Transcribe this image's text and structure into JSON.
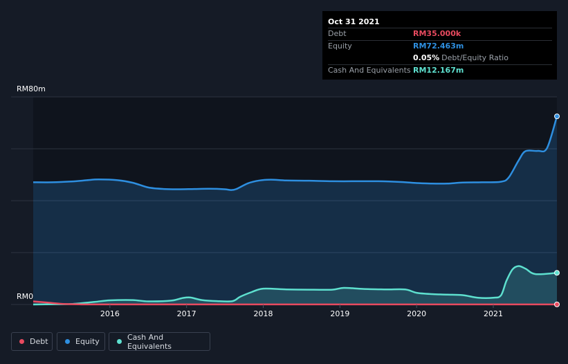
{
  "tooltip": {
    "date": "Oct 31 2021",
    "debt_label": "Debt",
    "debt_value": "RM35.000k",
    "equity_label": "Equity",
    "equity_value": "RM72.463m",
    "ratio_value": "0.05%",
    "ratio_label": "Debt/Equity Ratio",
    "cash_label": "Cash And Equivalents",
    "cash_value": "RM12.167m"
  },
  "legend": [
    {
      "label": "Debt",
      "color": "#e84a5f"
    },
    {
      "label": "Equity",
      "color": "#2e8fe0"
    },
    {
      "label": "Cash And Equivalents",
      "color": "#5ee0cf"
    }
  ],
  "chart_data": {
    "type": "area",
    "ylabel_top": "RM80m",
    "ylabel_bottom": "RM0",
    "ylim": [
      0,
      80
    ],
    "x_ticks": [
      "2016",
      "2017",
      "2018",
      "2019",
      "2020",
      "2021"
    ],
    "x_tick_values": [
      2016,
      2017,
      2018,
      2019,
      2020,
      2021
    ],
    "grid": true,
    "series": [
      {
        "name": "Equity",
        "color": "#2e8fe0",
        "x": [
          2015.0,
          2015.25,
          2015.5,
          2015.7,
          2015.85,
          2016.1,
          2016.3,
          2016.5,
          2016.7,
          2016.9,
          2017.1,
          2017.3,
          2017.5,
          2017.58,
          2017.65,
          2017.8,
          2017.95,
          2018.1,
          2018.3,
          2018.6,
          2018.9,
          2019.2,
          2019.5,
          2019.8,
          2020.0,
          2020.2,
          2020.4,
          2020.6,
          2020.85,
          2021.1,
          2021.2,
          2021.33,
          2021.42,
          2021.58,
          2021.7,
          2021.83
        ],
        "values": [
          47.1,
          47.1,
          47.4,
          47.9,
          48.2,
          47.9,
          46.9,
          45.1,
          44.5,
          44.4,
          44.5,
          44.6,
          44.4,
          44.1,
          44.5,
          46.7,
          47.8,
          48.1,
          47.8,
          47.7,
          47.5,
          47.5,
          47.5,
          47.2,
          46.8,
          46.6,
          46.6,
          47.0,
          47.1,
          47.3,
          48.9,
          55.5,
          59.1,
          59.2,
          60.2,
          72.5
        ]
      },
      {
        "name": "Cash And Equivalents",
        "color": "#5ee0cf",
        "x": [
          2015.0,
          2015.3,
          2015.5,
          2015.8,
          2016.0,
          2016.3,
          2016.5,
          2016.8,
          2016.95,
          2017.05,
          2017.2,
          2017.4,
          2017.6,
          2017.7,
          2017.85,
          2018.0,
          2018.3,
          2018.6,
          2018.9,
          2019.05,
          2019.3,
          2019.6,
          2019.85,
          2020.0,
          2020.2,
          2020.4,
          2020.6,
          2020.8,
          2021.0,
          2021.1,
          2021.17,
          2021.25,
          2021.33,
          2021.42,
          2021.55,
          2021.83
        ],
        "values": [
          0.0,
          0.1,
          0.2,
          1.0,
          1.6,
          1.7,
          1.2,
          1.5,
          2.5,
          2.7,
          1.7,
          1.3,
          1.3,
          3.0,
          4.8,
          6.1,
          5.8,
          5.7,
          5.7,
          6.4,
          6.0,
          5.8,
          5.8,
          4.5,
          4.0,
          3.8,
          3.6,
          2.6,
          2.6,
          3.5,
          9.0,
          13.5,
          14.8,
          13.8,
          11.7,
          12.2
        ]
      },
      {
        "name": "Debt",
        "color": "#e84a5f",
        "x": [
          2015.0,
          2015.2,
          2015.4,
          2015.6,
          2016.0,
          2017.0,
          2018.0,
          2019.0,
          2020.0,
          2021.0,
          2021.83
        ],
        "values": [
          1.2,
          0.7,
          0.2,
          0.05,
          0.04,
          0.04,
          0.04,
          0.04,
          0.04,
          0.04,
          0.035
        ]
      }
    ]
  }
}
